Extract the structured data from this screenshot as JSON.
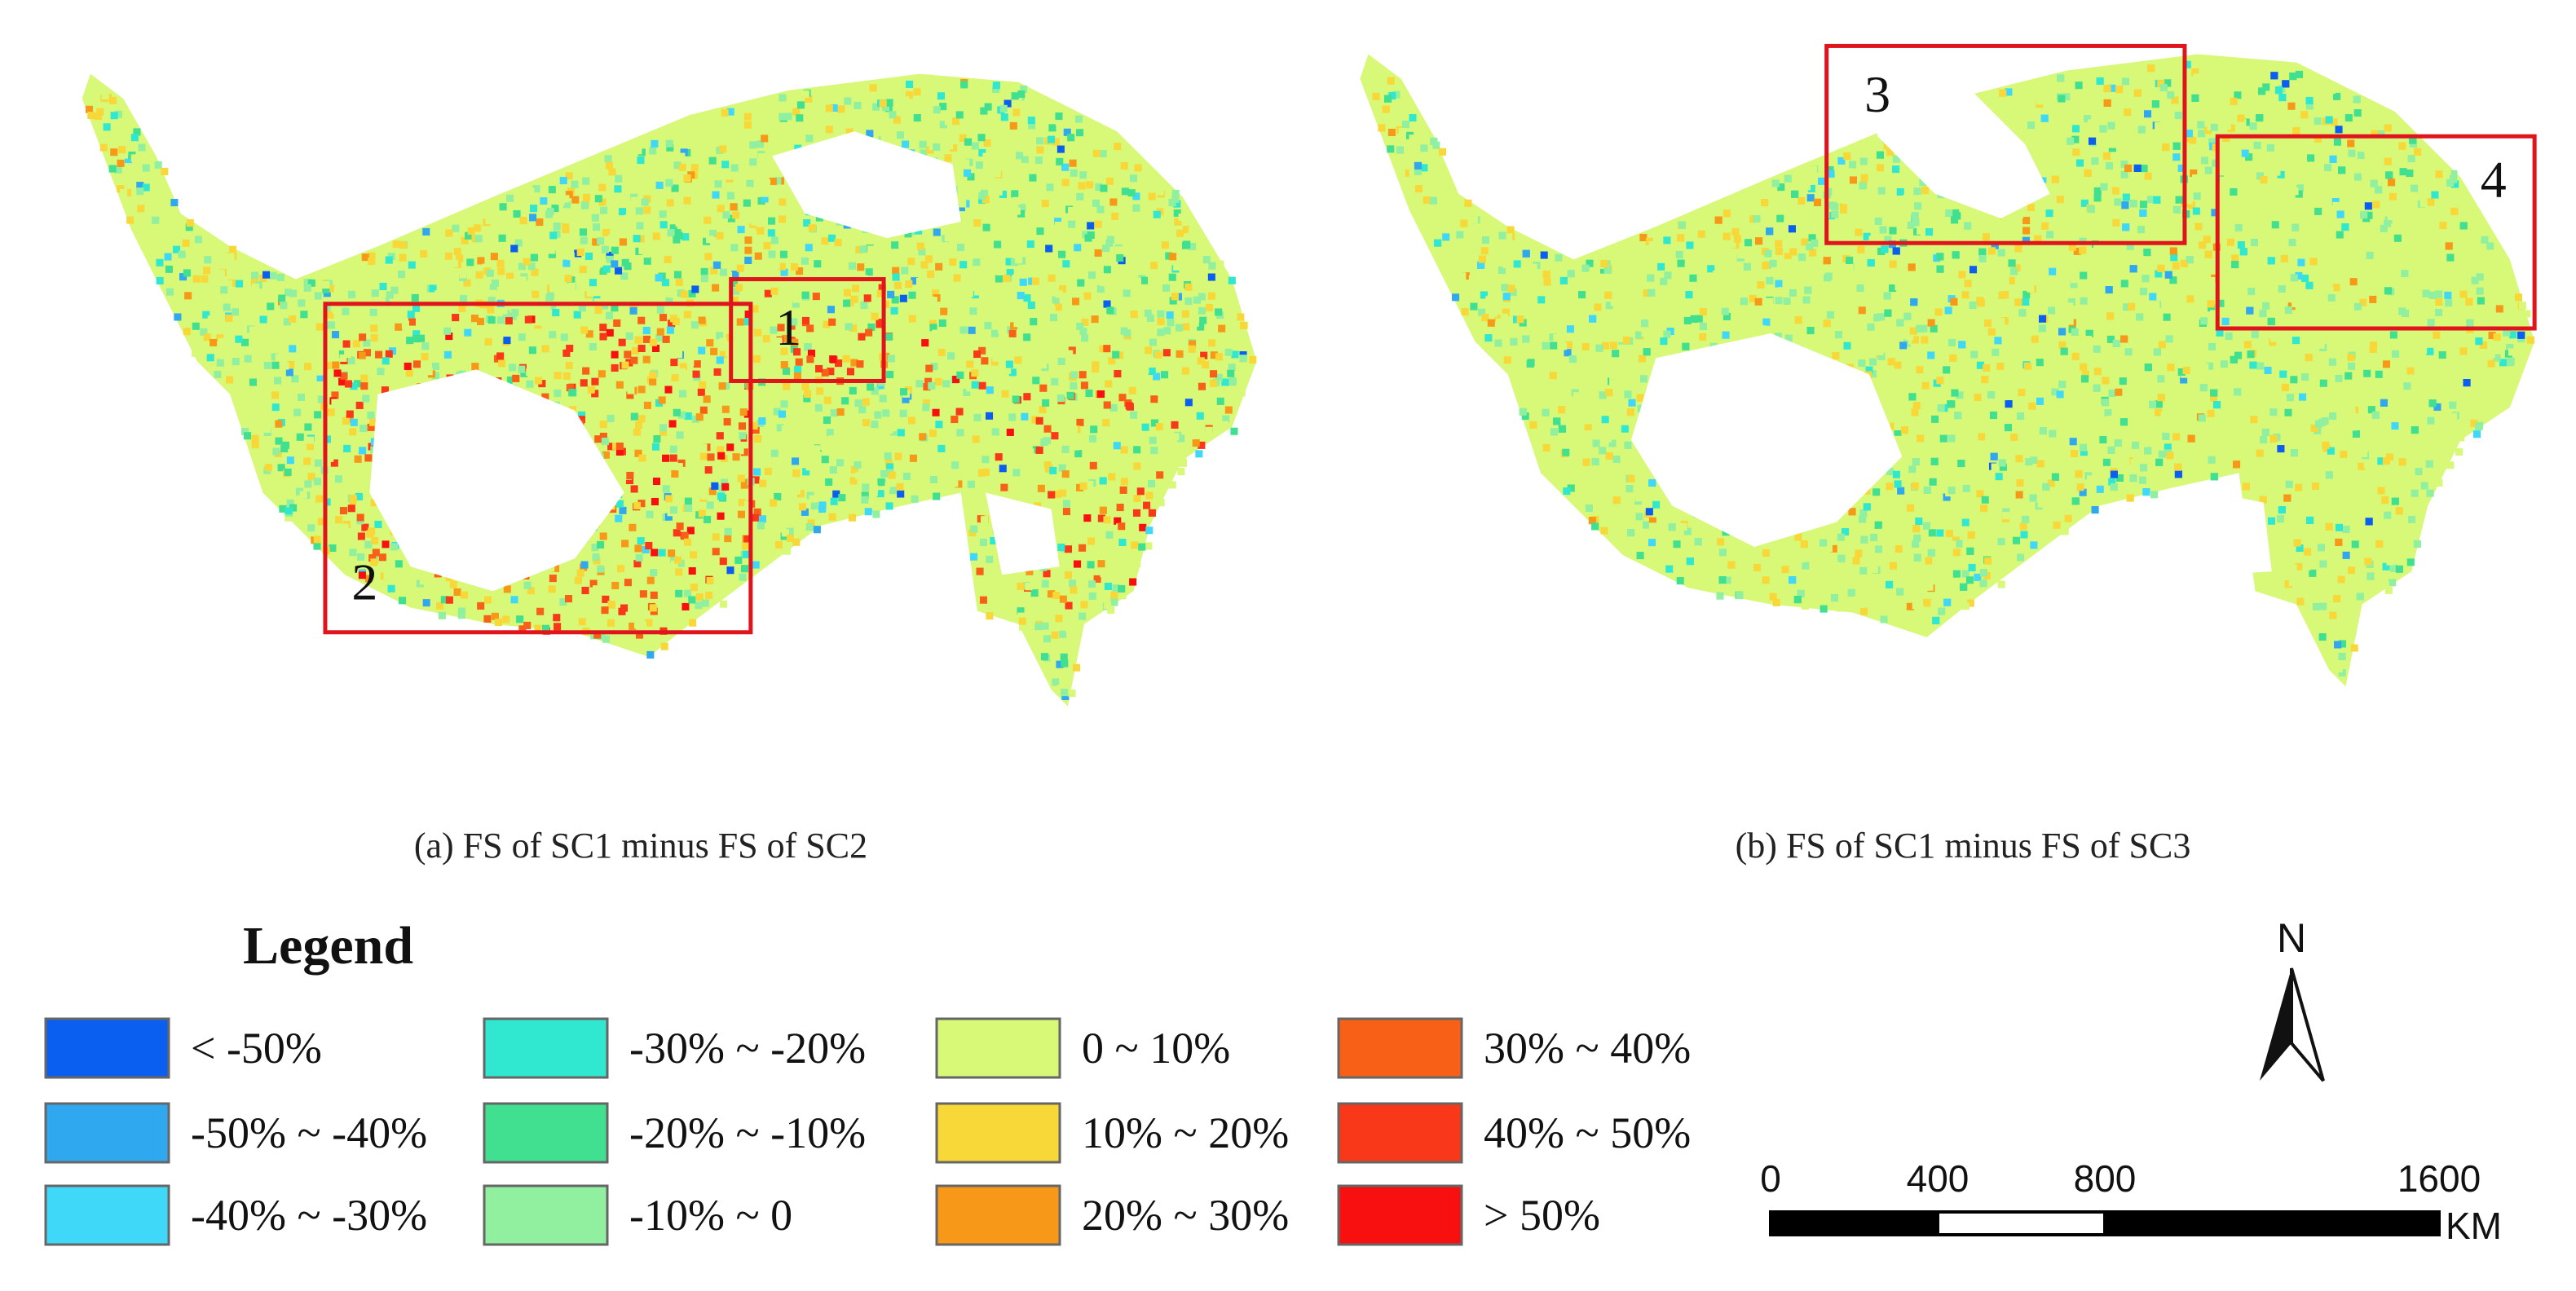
{
  "panels": [
    {
      "caption": "(a) FS of SC1 minus FS of SC2",
      "boxes": [
        "1",
        "2"
      ]
    },
    {
      "caption": "(b) FS of SC1 minus FS of SC3",
      "boxes": [
        "3",
        "4"
      ]
    }
  ],
  "legend": {
    "title": "Legend",
    "items": [
      {
        "label": "< -50%",
        "color": "#0a5ff0"
      },
      {
        "label": "-50% ~ -40%",
        "color": "#30a8f0"
      },
      {
        "label": "-40% ~ -30%",
        "color": "#40d8f8"
      },
      {
        "label": "-30% ~ -20%",
        "color": "#30e8d0"
      },
      {
        "label": "-20% ~ -10%",
        "color": "#40e090"
      },
      {
        "label": "-10% ~ 0",
        "color": "#90f0a0"
      },
      {
        "label": "0 ~ 10%",
        "color": "#d8f878"
      },
      {
        "label": "10% ~ 20%",
        "color": "#f8d838"
      },
      {
        "label": "20% ~ 30%",
        "color": "#f89818"
      },
      {
        "label": "30% ~ 40%",
        "color": "#f86018"
      },
      {
        "label": "40% ~ 50%",
        "color": "#f83818"
      },
      {
        "label": "> 50%",
        "color": "#f81010"
      }
    ]
  },
  "north_arrow": "N",
  "scale_bar": {
    "ticks": [
      0,
      400,
      800,
      1600
    ],
    "unit": "KM"
  }
}
